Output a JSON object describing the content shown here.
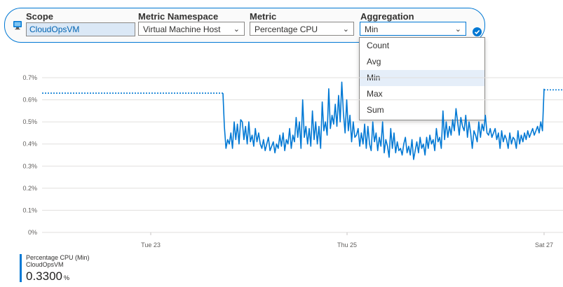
{
  "toolbar": {
    "scope": {
      "label": "Scope",
      "value": "CloudOpsVM",
      "icon": "virtual-machine-icon"
    },
    "namespace": {
      "label": "Metric Namespace",
      "value": "Virtual Machine Host"
    },
    "metric": {
      "label": "Metric",
      "value": "Percentage CPU"
    },
    "aggregation": {
      "label": "Aggregation",
      "value": "Min",
      "open": true,
      "options": [
        "Count",
        "Avg",
        "Min",
        "Max",
        "Sum"
      ],
      "selected_index": 2
    },
    "confirm_icon": "check-circle-icon",
    "accent_color": "#0078d4"
  },
  "chart_data": {
    "type": "line",
    "y_ticks": [
      "0.7%",
      "0.6%",
      "0.5%",
      "0.4%",
      "0.3%",
      "0.2%",
      "0.1%",
      "0%"
    ],
    "x_ticks": [
      "Tue 23",
      "Thu 25",
      "Sat 27"
    ],
    "ylim": [
      0,
      0.7
    ],
    "grid": true,
    "series": [
      {
        "color": "#0078d4",
        "start_value": 0.63,
        "end_value": 0.645,
        "values": [
          0.48,
          0.38,
          0.42,
          0.4,
          0.45,
          0.38,
          0.5,
          0.42,
          0.49,
          0.4,
          0.51,
          0.5,
          0.42,
          0.48,
          0.4,
          0.5,
          0.41,
          0.44,
          0.39,
          0.47,
          0.41,
          0.45,
          0.4,
          0.38,
          0.42,
          0.37,
          0.4,
          0.43,
          0.37,
          0.39,
          0.41,
          0.36,
          0.4,
          0.38,
          0.44,
          0.39,
          0.45,
          0.37,
          0.42,
          0.4,
          0.47,
          0.38,
          0.44,
          0.41,
          0.52,
          0.43,
          0.5,
          0.38,
          0.6,
          0.43,
          0.48,
          0.4,
          0.47,
          0.39,
          0.55,
          0.42,
          0.5,
          0.4,
          0.48,
          0.38,
          0.59,
          0.46,
          0.5,
          0.44,
          0.65,
          0.47,
          0.53,
          0.49,
          0.58,
          0.48,
          0.62,
          0.5,
          0.68,
          0.54,
          0.45,
          0.6,
          0.46,
          0.53,
          0.41,
          0.5,
          0.43,
          0.44,
          0.47,
          0.39,
          0.45,
          0.4,
          0.49,
          0.38,
          0.48,
          0.4,
          0.37,
          0.5,
          0.41,
          0.45,
          0.37,
          0.43,
          0.39,
          0.5,
          0.36,
          0.42,
          0.39,
          0.34,
          0.47,
          0.38,
          0.45,
          0.36,
          0.41,
          0.37,
          0.38,
          0.35,
          0.4,
          0.43,
          0.36,
          0.39,
          0.35,
          0.42,
          0.33,
          0.37,
          0.41,
          0.36,
          0.43,
          0.38,
          0.4,
          0.35,
          0.43,
          0.38,
          0.44,
          0.4,
          0.42,
          0.37,
          0.47,
          0.41,
          0.43,
          0.38,
          0.55,
          0.42,
          0.5,
          0.43,
          0.48,
          0.44,
          0.51,
          0.46,
          0.56,
          0.5,
          0.44,
          0.52,
          0.48,
          0.46,
          0.53,
          0.43,
          0.5,
          0.45,
          0.38,
          0.46,
          0.44,
          0.41,
          0.5,
          0.43,
          0.49,
          0.46,
          0.53,
          0.45,
          0.44,
          0.47,
          0.43,
          0.45,
          0.47,
          0.42,
          0.45,
          0.38,
          0.46,
          0.41,
          0.44,
          0.42,
          0.38,
          0.45,
          0.4,
          0.43,
          0.42,
          0.38,
          0.46,
          0.4,
          0.44,
          0.41,
          0.45,
          0.42,
          0.46,
          0.43,
          0.45,
          0.47,
          0.44,
          0.46,
          0.48,
          0.45,
          0.5,
          0.46,
          0.65
        ]
      }
    ]
  },
  "legend": {
    "name": "Percentage CPU (Min)",
    "resource": "CloudOpsVM",
    "value": "0.3300",
    "unit": "%"
  }
}
